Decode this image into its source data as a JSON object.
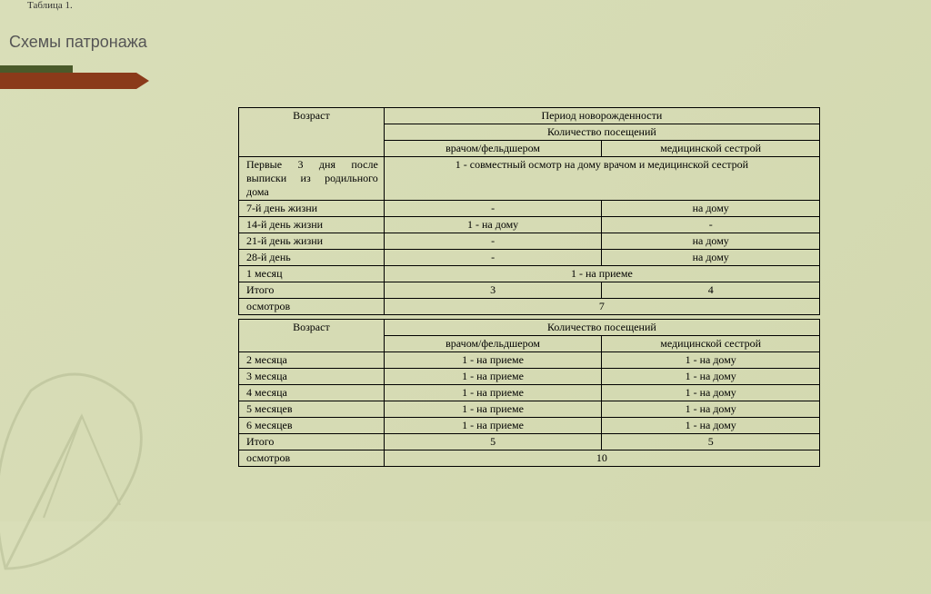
{
  "topLabel": "Таблица 1.",
  "title": "Схемы патронажа",
  "table1": {
    "header": {
      "age": "Возраст",
      "period": "Период новорожденности",
      "visits": "Количество посещений",
      "doctor": "врачом/фельдшером",
      "nurse": "медицинской сестрой"
    },
    "rows": [
      {
        "age": "Первые 3 дня после выписки из родильного дома",
        "merged": "1 - совместный осмотр на дому врачом и медицинской сестрой",
        "type": "merged"
      },
      {
        "age": "7-й день жизни",
        "doctor": "-",
        "nurse": "на дому",
        "type": "split"
      },
      {
        "age": "14-й день жизни",
        "doctor": "1 - на дому",
        "nurse": "-",
        "type": "split"
      },
      {
        "age": "21-й день жизни",
        "doctor": "-",
        "nurse": "на дому",
        "type": "split"
      },
      {
        "age": "28-й день",
        "doctor": "-",
        "nurse": "на дому",
        "type": "split"
      },
      {
        "age": "1 месяц",
        "merged": "1 - на приеме",
        "type": "merged"
      },
      {
        "age": "Итого",
        "doctor": "3",
        "nurse": "4",
        "type": "split"
      },
      {
        "age": "осмотров",
        "merged": "7",
        "type": "merged"
      }
    ]
  },
  "table2": {
    "header": {
      "age": "Возраст",
      "visits": "Количество посещений",
      "doctor": "врачом/фельдшером",
      "nurse": "медицинской сестрой"
    },
    "rows": [
      {
        "age": "2 месяца",
        "doctor": "1 - на приеме",
        "nurse": "1 - на дому",
        "type": "split"
      },
      {
        "age": "3 месяца",
        "doctor": "1 - на приеме",
        "nurse": "1 - на дому",
        "type": "split"
      },
      {
        "age": "4 месяца",
        "doctor": "1 - на приеме",
        "nurse": "1 - на дому",
        "type": "split"
      },
      {
        "age": "5 месяцев",
        "doctor": "1 - на приеме",
        "nurse": "1 - на дому",
        "type": "split"
      },
      {
        "age": "6 месяцев",
        "doctor": "1 - на приеме",
        "nurse": "1 - на дому",
        "type": "split"
      },
      {
        "age": "Итого",
        "doctor": "5",
        "nurse": "5",
        "type": "split"
      },
      {
        "age": "осмотров",
        "merged": "10",
        "type": "merged"
      }
    ]
  }
}
